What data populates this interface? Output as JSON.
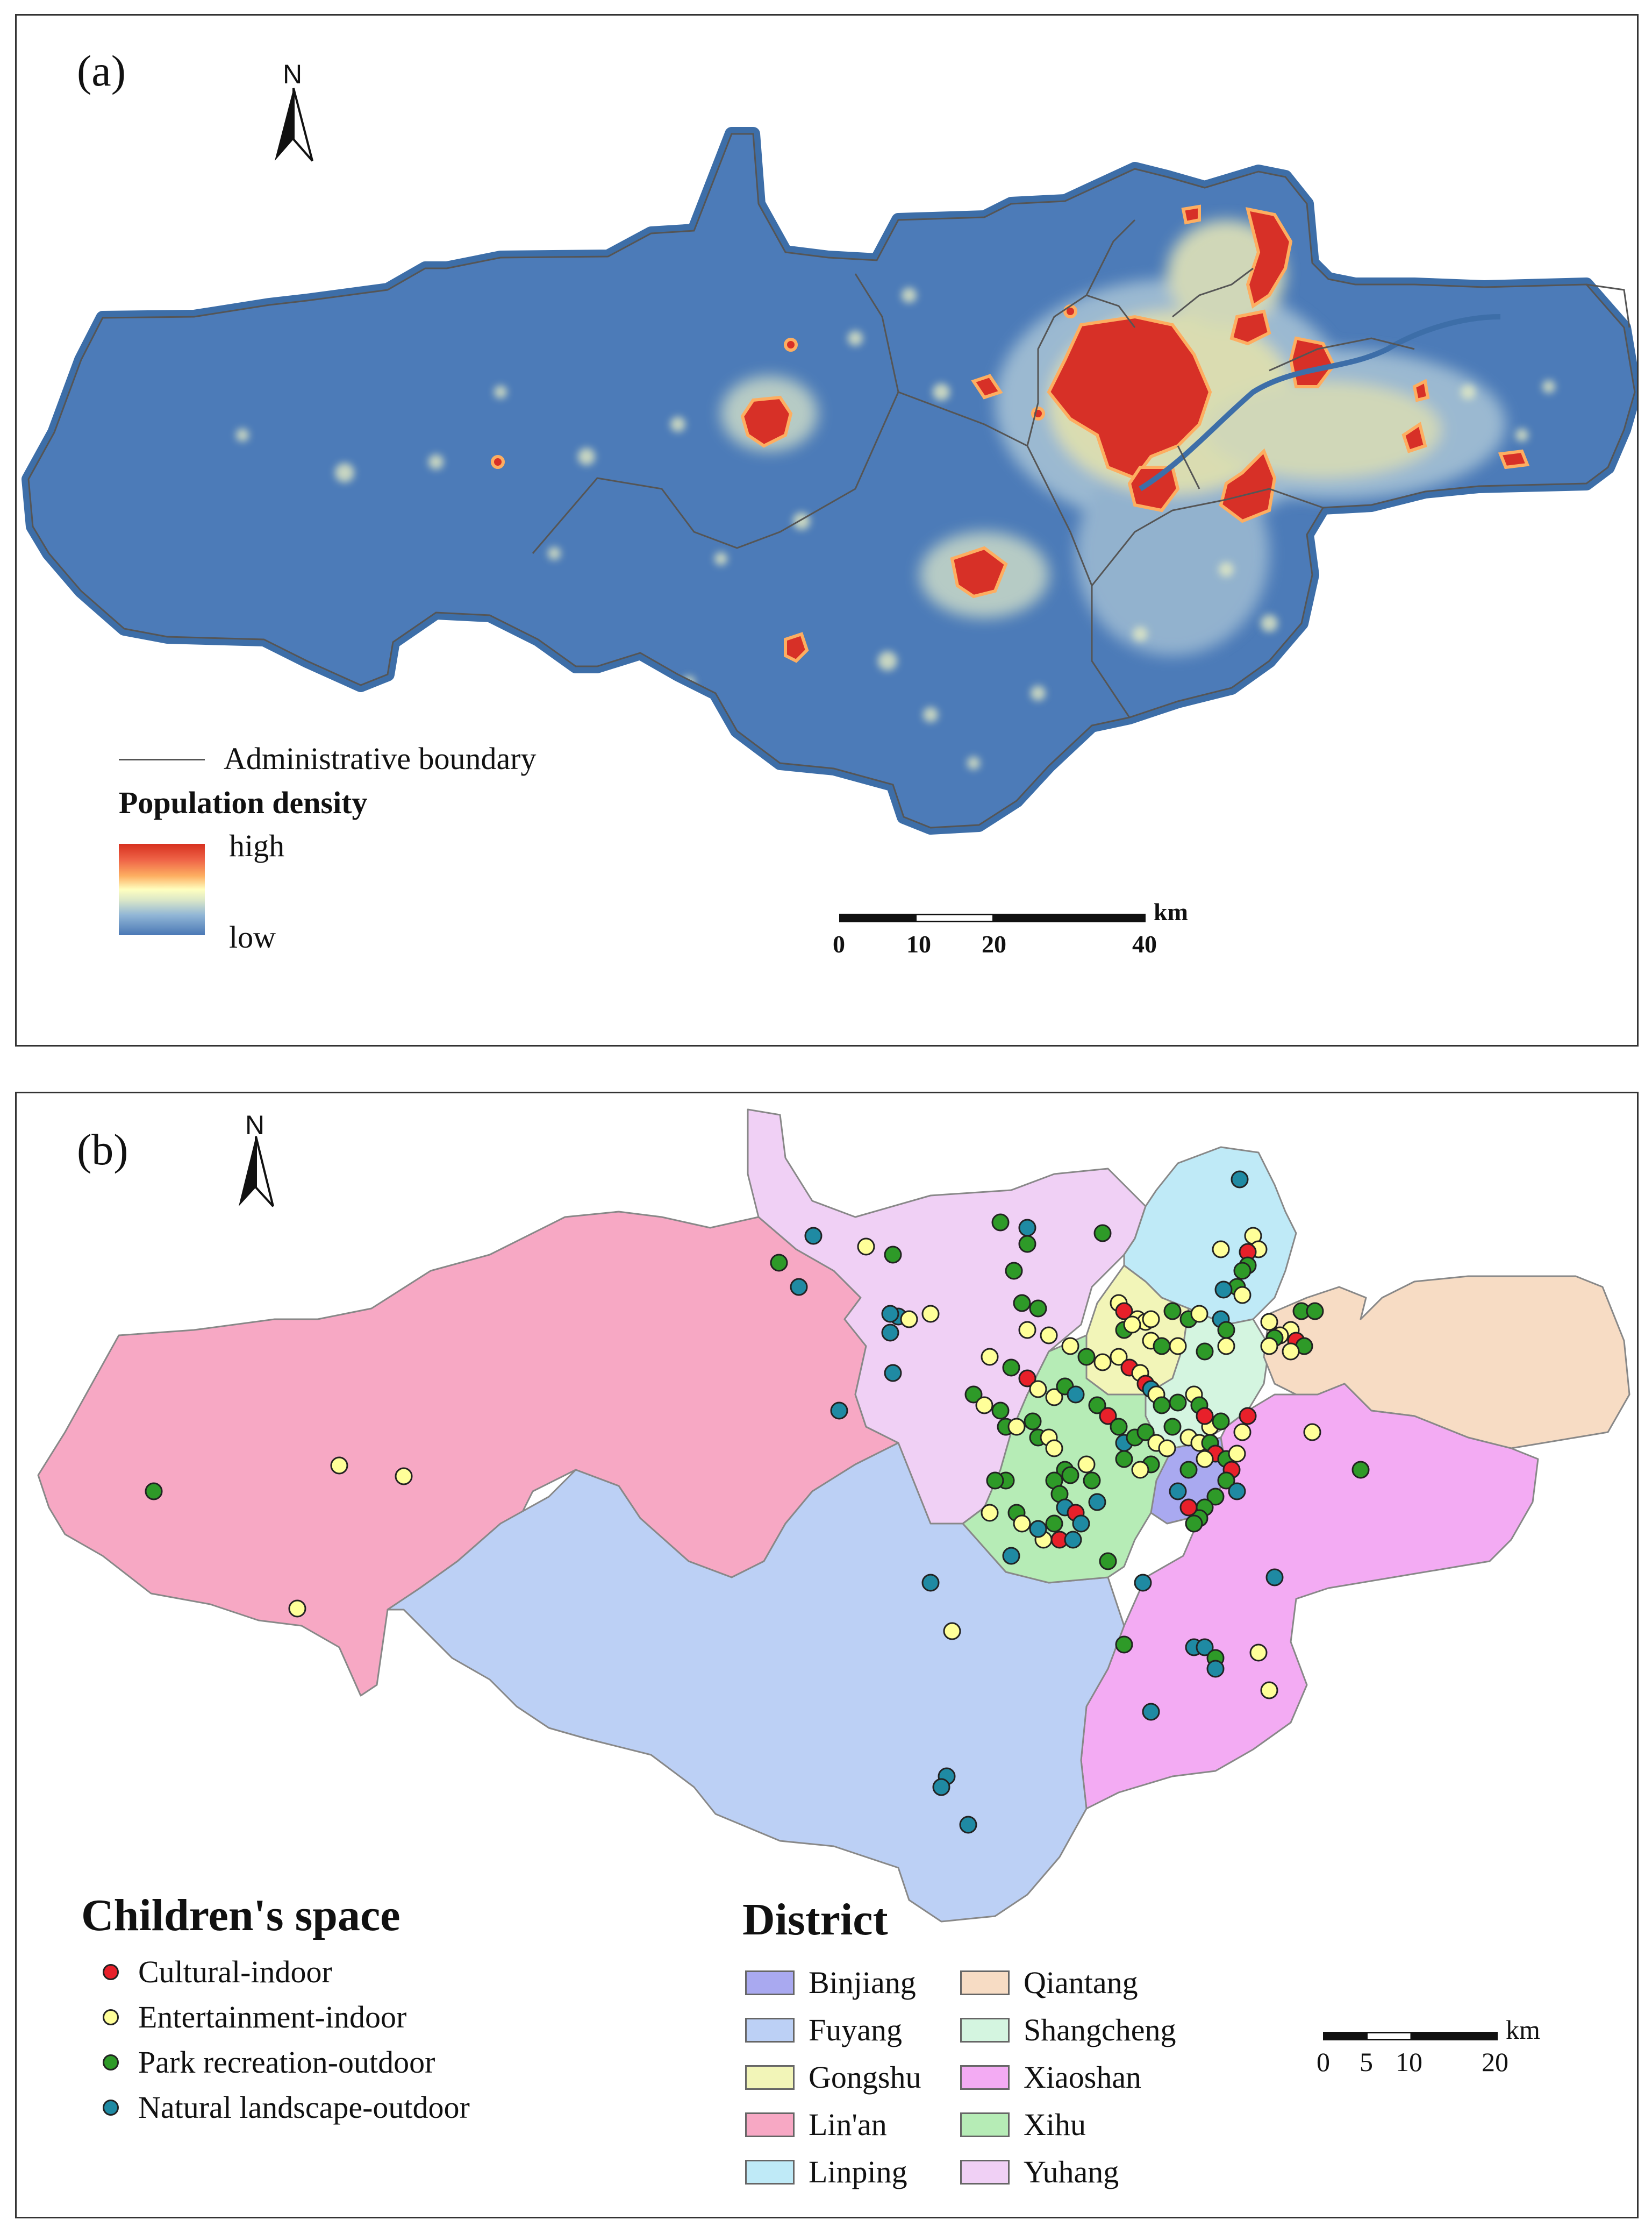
{
  "panel_a": {
    "label": "(a)",
    "north_label": "N",
    "legend": {
      "boundary_label": "Administrative boundary",
      "density_title": "Population density",
      "high_label": "high",
      "low_label": "low",
      "ramp_colors": [
        "#d7301f",
        "#fc8d59",
        "#fee08b",
        "#ffffbf",
        "#d9ef8b",
        "#91bfdb",
        "#4a78b5"
      ]
    },
    "scale": {
      "unit": "km",
      "ticks": [
        "0",
        "10",
        "20",
        "40"
      ]
    }
  },
  "panel_b": {
    "label": "(b)",
    "north_label": "N",
    "children_space": {
      "title": "Children's space",
      "items": [
        {
          "label": "Cultural-indoor",
          "color": "#e8202a"
        },
        {
          "label": "Entertainment-indoor",
          "color": "#ffff99"
        },
        {
          "label": "Park recreation-outdoor",
          "color": "#2e9a28"
        },
        {
          "label": "Natural landscape-outdoor",
          "color": "#1f8aa3"
        }
      ]
    },
    "district": {
      "title": "District",
      "items": [
        {
          "label": "Binjiang",
          "color": "#a9a9f0"
        },
        {
          "label": "Fuyang",
          "color": "#bcd0f5"
        },
        {
          "label": "Gongshu",
          "color": "#f2f5b8"
        },
        {
          "label": "Lin'an",
          "color": "#f7a8c4"
        },
        {
          "label": "Linping",
          "color": "#bfeaf7"
        },
        {
          "label": "Qiantang",
          "color": "#f7dcc4"
        },
        {
          "label": "Shangcheng",
          "color": "#d4f5e0"
        },
        {
          "label": "Xiaoshan",
          "color": "#f3abf3"
        },
        {
          "label": "Xihu",
          "color": "#b6ecb6"
        },
        {
          "label": "Yuhang",
          "color": "#f0d0f5"
        }
      ]
    },
    "scale": {
      "unit": "km",
      "ticks": [
        "0",
        "5",
        "10",
        "20"
      ]
    }
  }
}
